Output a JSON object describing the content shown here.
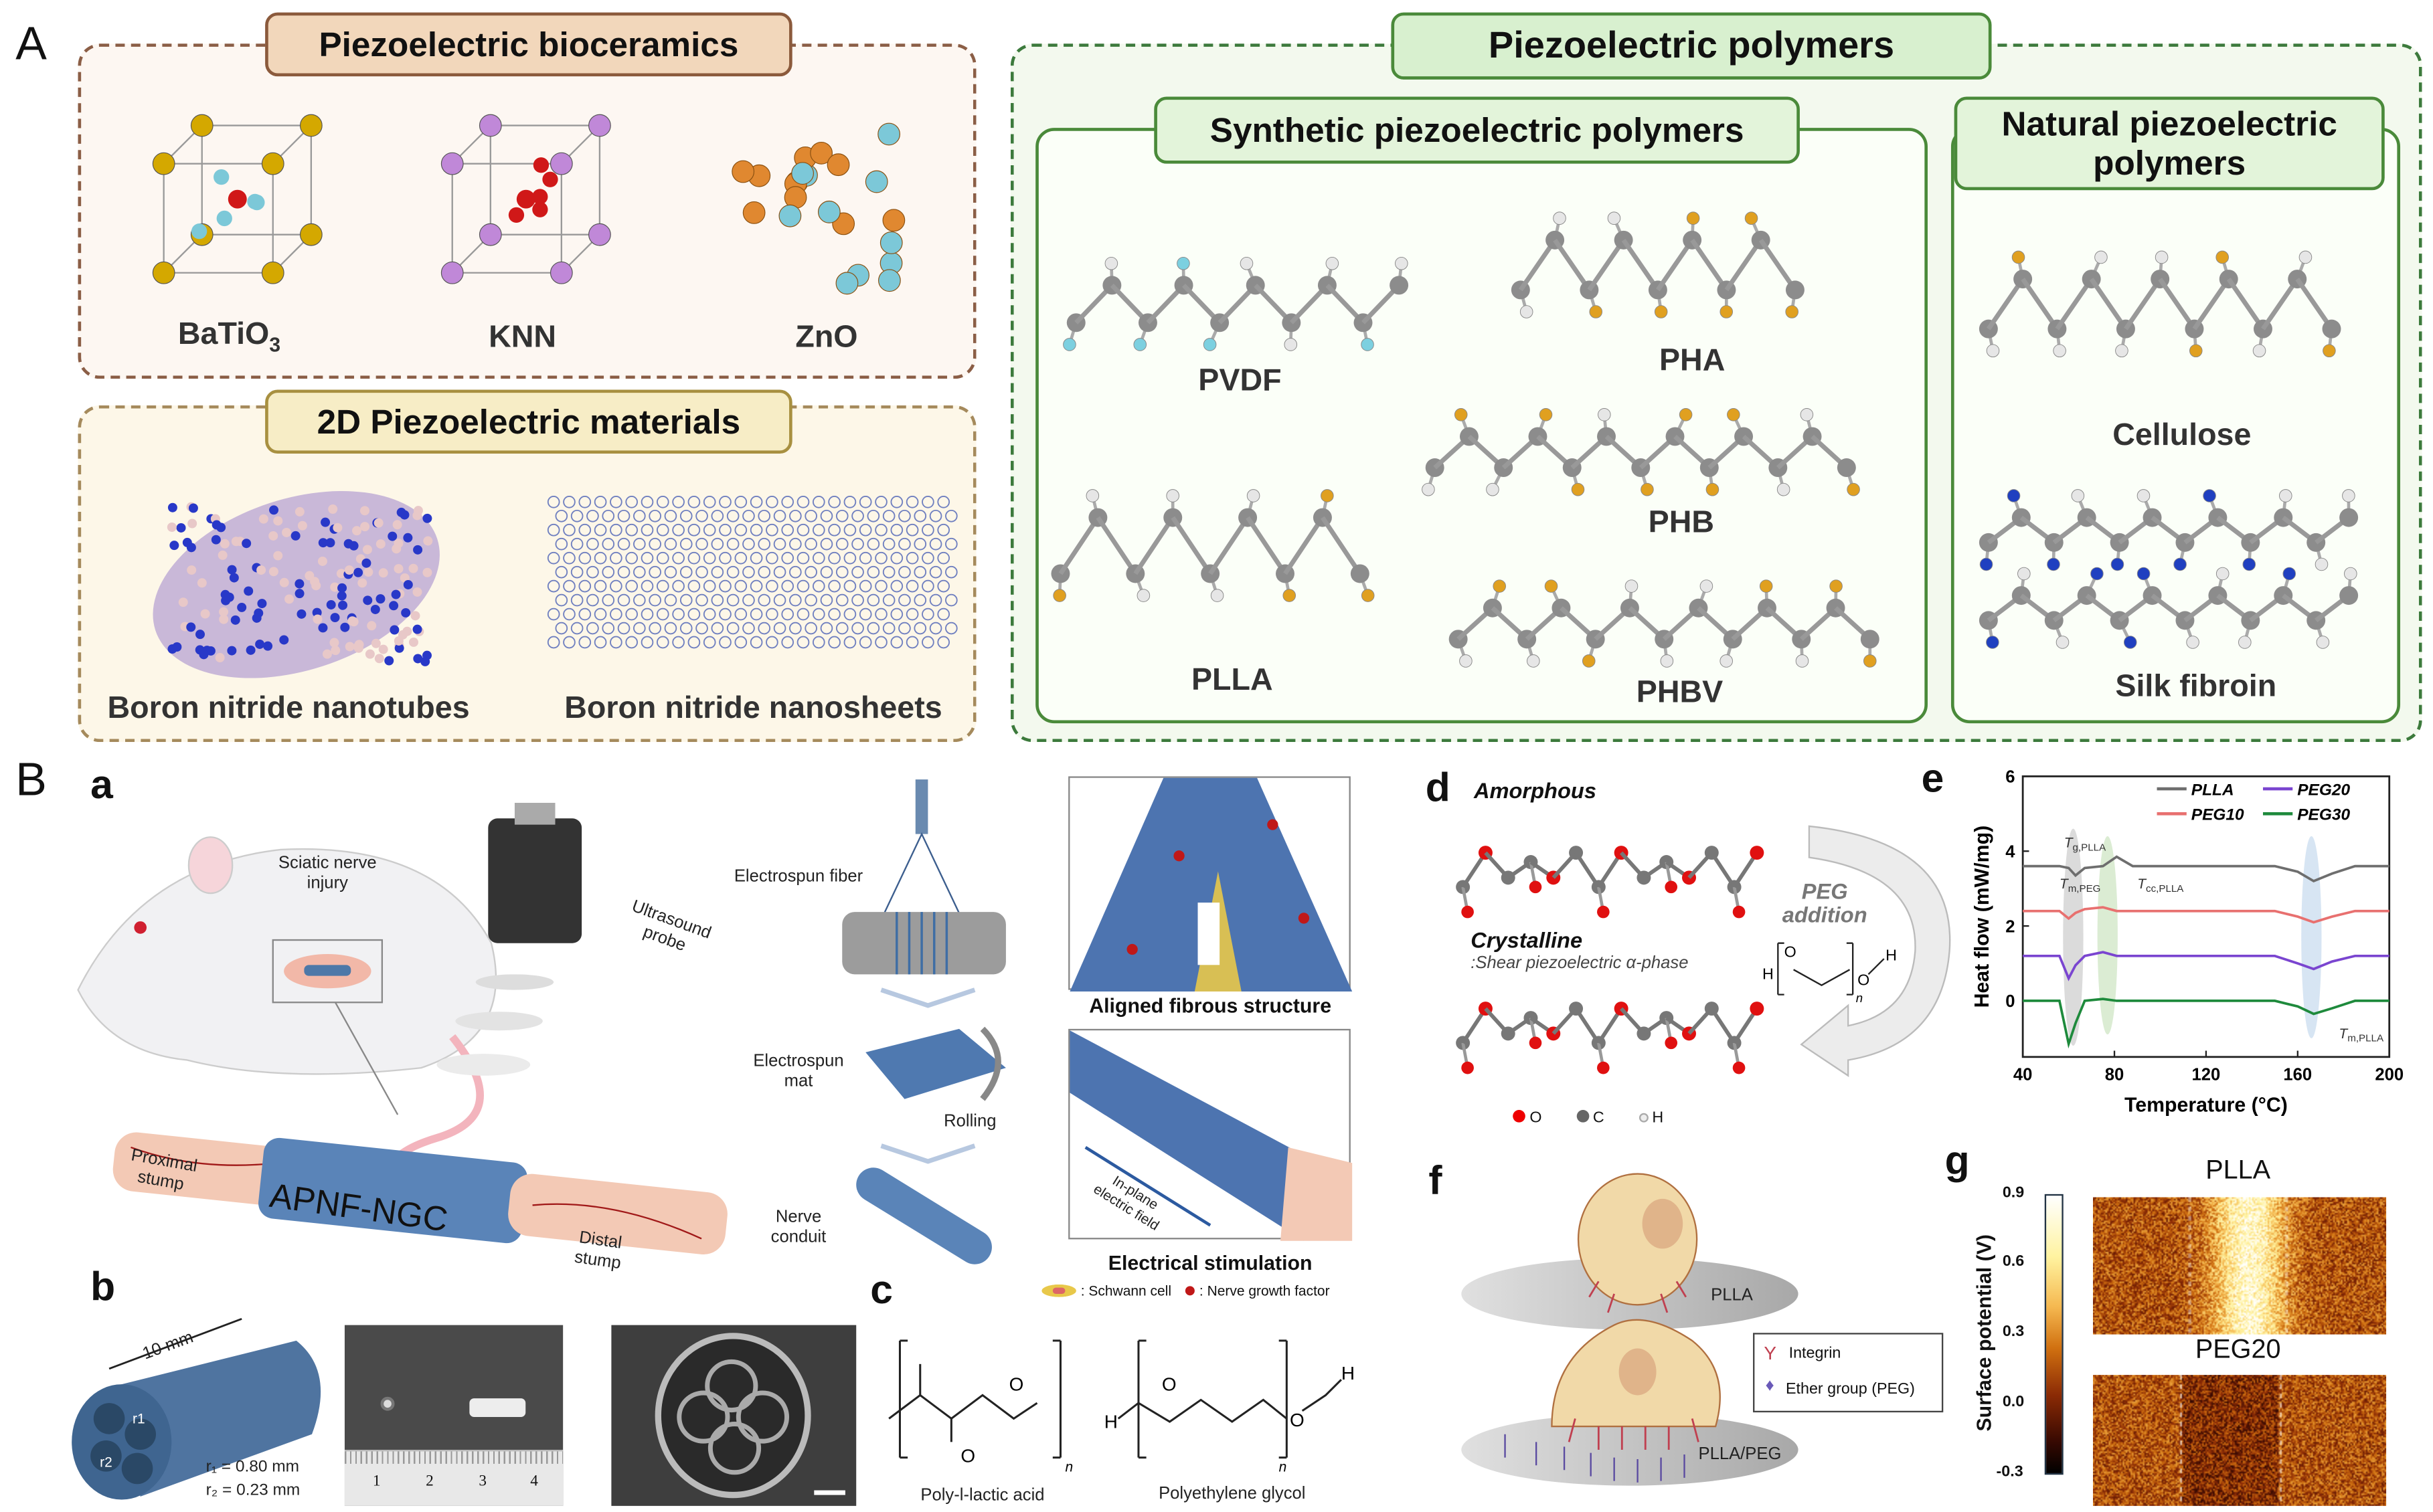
{
  "panel_A": {
    "letter": "A",
    "bioceramics": {
      "title": "Piezoelectric bioceramics",
      "items": [
        "BaTiO",
        "KNN",
        "ZnO"
      ],
      "batio_subscript": "3"
    },
    "two_d": {
      "title": "2D Piezoelectric materials",
      "items": [
        "Boron nitride nanotubes",
        "Boron nitride nanosheets"
      ]
    },
    "polymers": {
      "title": "Piezoelectric polymers",
      "synthetic": {
        "title": "Synthetic piezoelectric polymers",
        "items": [
          "PVDF",
          "PHA",
          "PHB",
          "PLLA",
          "PHBV"
        ]
      },
      "natural": {
        "title": "Natural piezoelectric polymers",
        "items": [
          "Cellulose",
          "Silk fibroin"
        ]
      }
    }
  },
  "panel_B": {
    "letter": "B",
    "a": {
      "letter": "a",
      "sciatic": "Sciatic nerve injury",
      "probe": "Ultrasound probe",
      "conduit_name": "APNF-NGC",
      "proximal": "Proximal stump",
      "distal": "Distal stump",
      "fiber": "Electrospun fiber",
      "mat": "Electrospun mat",
      "rolling": "Rolling",
      "nerve_conduit": "Nerve conduit",
      "aligned": "Aligned fibrous structure",
      "in_plane": "In-plane electric field",
      "stimulation": "Electrical stimulation",
      "legend_schwann": ": Schwann cell",
      "legend_ngf": ": Nerve growth factor"
    },
    "b": {
      "letter": "b",
      "length": "10 mm",
      "r1_label": "r1",
      "r2_label": "r2",
      "r1": "r₁ = 0.80 mm",
      "r2": "r₂ = 0.23 mm",
      "ruler": [
        "1",
        "2",
        "3",
        "4"
      ]
    },
    "c": {
      "letter": "c",
      "plla": "Poly-l-lactic acid",
      "peg": "Polyethylene glycol",
      "atoms": {
        "O": "O",
        "H": "H",
        "n": "n"
      }
    },
    "d": {
      "letter": "d",
      "amorphous": "Amorphous",
      "crystalline": "Crystalline",
      "crystalline_sub": ":Shear piezoelectric α-phase",
      "peg_addition": "PEG addition",
      "legend": [
        "O",
        "C",
        "H"
      ]
    },
    "f": {
      "letter": "f",
      "surface1": "PLLA",
      "surface2": "PLLA/PEG",
      "legend": [
        "Integrin",
        "Ether group (PEG)"
      ]
    },
    "g": {
      "letter": "g",
      "colorbar_label": "Surface potential (V)",
      "ticks": [
        "0.9",
        "0.6",
        "0.3",
        "0.0",
        "-0.3"
      ],
      "colorbar_range": [
        -0.3,
        0.9
      ],
      "maps": [
        "PLLA",
        "PEG20"
      ]
    }
  },
  "chart_data": {
    "type": "line",
    "panel_letter": "e",
    "xlabel": "Temperature (°C)",
    "ylabel": "Heat flow (mW/mg)",
    "xlim": [
      40,
      200
    ],
    "ylim": [
      -1.5,
      6
    ],
    "xticks": [
      "40",
      "80",
      "120",
      "160",
      "200"
    ],
    "yticks": [
      "6",
      "4",
      "2",
      "0"
    ],
    "legend_position": "top-right",
    "x": [
      40,
      56,
      60,
      63,
      67,
      75,
      81,
      88,
      150,
      160,
      167,
      175,
      185,
      200
    ],
    "series": [
      {
        "name": "PLLA",
        "color": "#6e6e6e",
        "values": [
          3.6,
          3.6,
          3.55,
          3.35,
          3.55,
          3.6,
          3.85,
          3.6,
          3.6,
          3.45,
          3.2,
          3.4,
          3.6,
          3.6
        ]
      },
      {
        "name": "PEG10",
        "color": "#e8706f",
        "values": [
          2.4,
          2.4,
          2.2,
          2.35,
          2.45,
          2.5,
          2.4,
          2.4,
          2.4,
          2.25,
          2.1,
          2.25,
          2.4,
          2.4
        ]
      },
      {
        "name": "PEG20",
        "color": "#7a45d0",
        "values": [
          1.2,
          1.2,
          0.6,
          0.95,
          1.2,
          1.3,
          1.2,
          1.2,
          1.2,
          1.0,
          0.85,
          1.05,
          1.2,
          1.2
        ]
      },
      {
        "name": "PEG30",
        "color": "#1e8a3c",
        "values": [
          0,
          0,
          -1.15,
          -0.6,
          0,
          0.05,
          0,
          0,
          0,
          -0.15,
          -0.35,
          -0.2,
          0,
          0
        ]
      }
    ],
    "annotations": [
      {
        "text": "T",
        "sub": "g,PLLA",
        "x": 58,
        "y": 4.1
      },
      {
        "text": "T",
        "sub": "m,PEG",
        "x": 56,
        "y": 3.0
      },
      {
        "text": "T",
        "sub": "cc,PLLA",
        "x": 90,
        "y": 3.0
      },
      {
        "text": "T",
        "sub": "m,PLLA",
        "x": 178,
        "y": -1.0
      }
    ],
    "highlight_regions": [
      {
        "x": 62,
        "y_range": [
          -1.2,
          4.6
        ],
        "color": "#cfcfcf"
      },
      {
        "x": 77,
        "y_range": [
          -0.9,
          4.4
        ],
        "color": "#cfe6c4"
      },
      {
        "x": 166,
        "y_range": [
          -1.0,
          4.4
        ],
        "color": "#c9dcef"
      }
    ]
  }
}
